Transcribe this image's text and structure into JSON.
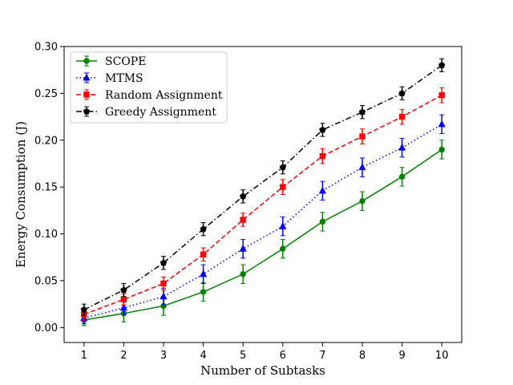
{
  "chart_data": {
    "type": "line",
    "xlabel": "Number of Subtasks",
    "ylabel": "Energy Consumption (J)",
    "x": [
      1,
      2,
      3,
      4,
      5,
      6,
      7,
      8,
      9,
      10
    ],
    "xlim": [
      0.5,
      10.5
    ],
    "ylim": [
      -0.016,
      0.3
    ],
    "xticks": [
      "1",
      "2",
      "3",
      "4",
      "5",
      "6",
      "7",
      "8",
      "9",
      "10"
    ],
    "yticks": [
      0.0,
      0.05,
      0.1,
      0.15,
      0.2,
      0.25,
      0.3
    ],
    "ytick_labels": [
      "0.00",
      "0.05",
      "0.10",
      "0.15",
      "0.20",
      "0.25",
      "0.30"
    ],
    "grid": false,
    "legend_position": "top-left",
    "series": [
      {
        "name": "SCOPE",
        "color": "#008000",
        "marker": "circle",
        "dash": "solid",
        "values": [
          0.008,
          0.015,
          0.023,
          0.038,
          0.057,
          0.084,
          0.113,
          0.135,
          0.161,
          0.19
        ],
        "errors": [
          0.006,
          0.009,
          0.01,
          0.01,
          0.01,
          0.01,
          0.01,
          0.01,
          0.01,
          0.01
        ]
      },
      {
        "name": "MTMS",
        "color": "#0000ff",
        "marker": "triangle",
        "dash": "dotted",
        "values": [
          0.01,
          0.021,
          0.033,
          0.057,
          0.084,
          0.108,
          0.146,
          0.171,
          0.192,
          0.217
        ],
        "errors": [
          0.006,
          0.007,
          0.009,
          0.01,
          0.01,
          0.01,
          0.01,
          0.01,
          0.01,
          0.01
        ]
      },
      {
        "name": "Random Assignment",
        "color": "#ff0000",
        "marker": "square",
        "dash": "dashed",
        "values": [
          0.014,
          0.03,
          0.047,
          0.078,
          0.115,
          0.15,
          0.183,
          0.204,
          0.225,
          0.248
        ],
        "errors": [
          0.006,
          0.006,
          0.007,
          0.007,
          0.007,
          0.008,
          0.008,
          0.008,
          0.008,
          0.008
        ]
      },
      {
        "name": "Greedy Assignment",
        "color": "#000000",
        "marker": "pentagon",
        "dash": "dashdot",
        "values": [
          0.019,
          0.04,
          0.069,
          0.105,
          0.14,
          0.171,
          0.211,
          0.23,
          0.25,
          0.28
        ],
        "errors": [
          0.006,
          0.007,
          0.007,
          0.007,
          0.007,
          0.007,
          0.007,
          0.007,
          0.007,
          0.007
        ]
      }
    ]
  }
}
